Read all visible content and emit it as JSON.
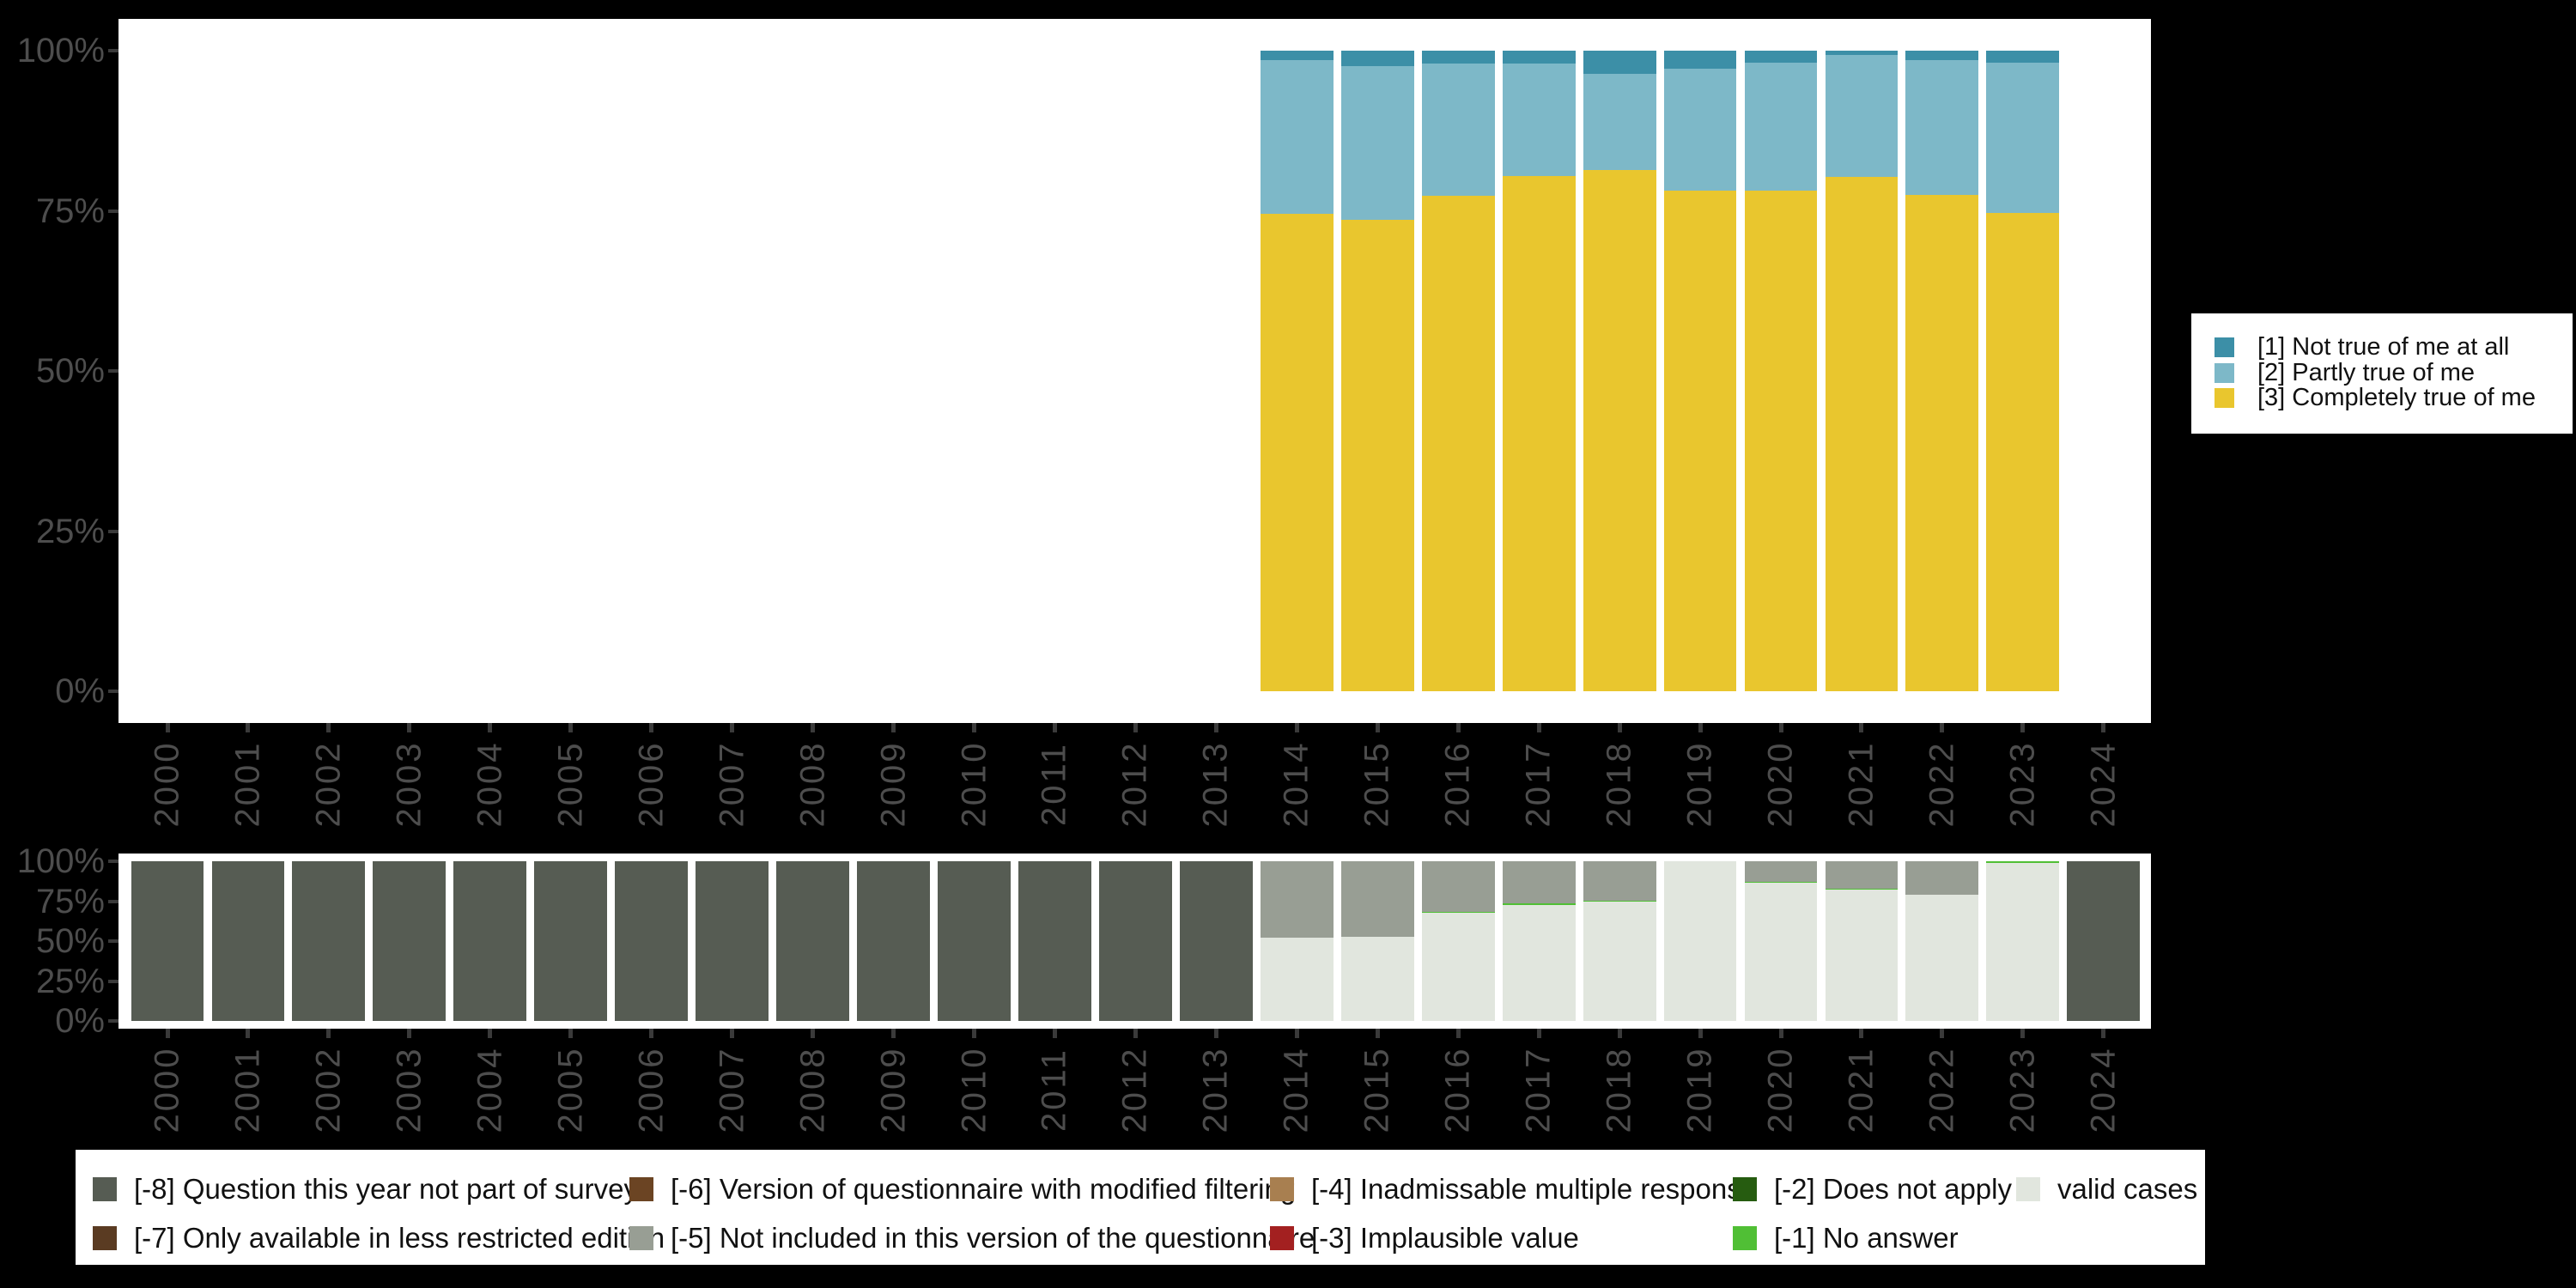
{
  "colors": {
    "background": "#000000",
    "panel": "#ffffff",
    "axis_text": "#4d4d4d",
    "tick": "#3a3a3a",
    "legend_bg": "#ffffff",
    "legend_text": "#111111"
  },
  "chart_data": [
    {
      "id": "response-distribution",
      "type": "bar",
      "stacked": true,
      "title": "",
      "xlabel": "",
      "ylabel": "",
      "ylim": [
        0,
        100
      ],
      "grid": false,
      "y_ticks": [
        {
          "label": "100%",
          "value": 100
        },
        {
          "label": "75%",
          "value": 75
        },
        {
          "label": "50%",
          "value": 50
        },
        {
          "label": "25%",
          "value": 25
        },
        {
          "label": "0%",
          "value": 0
        }
      ],
      "categories": [
        "2000",
        "2001",
        "2002",
        "2003",
        "2004",
        "2005",
        "2006",
        "2007",
        "2008",
        "2009",
        "2010",
        "2011",
        "2012",
        "2013",
        "2014",
        "2015",
        "2016",
        "2017",
        "2018",
        "2019",
        "2020",
        "2021",
        "2022",
        "2023",
        "2024"
      ],
      "series": [
        {
          "name": "[3] Completely true of me",
          "color": "#e9c62e",
          "values": [
            null,
            null,
            null,
            null,
            null,
            null,
            null,
            null,
            null,
            null,
            null,
            null,
            null,
            null,
            74.5,
            73.6,
            77.3,
            80.4,
            81.4,
            78.2,
            78.2,
            80.3,
            77.5,
            74.6,
            null
          ]
        },
        {
          "name": "[2] Partly true of me",
          "color": "#7db8c8",
          "values": [
            null,
            null,
            null,
            null,
            null,
            null,
            null,
            null,
            null,
            null,
            null,
            null,
            null,
            null,
            24.0,
            24.0,
            20.7,
            17.6,
            15.0,
            19.0,
            19.9,
            19.0,
            21.0,
            23.5,
            null
          ]
        },
        {
          "name": "[1] Not true of me at all",
          "color": "#3c8fa7",
          "values": [
            null,
            null,
            null,
            null,
            null,
            null,
            null,
            null,
            null,
            null,
            null,
            null,
            null,
            null,
            1.5,
            2.4,
            2.0,
            2.0,
            3.6,
            2.8,
            1.9,
            0.7,
            1.5,
            1.9,
            null
          ]
        }
      ],
      "legend": {
        "position": "right",
        "items": [
          {
            "label": "[1] Not true of me at all",
            "color": "#3c8fa7"
          },
          {
            "label": "[2] Partly true of me",
            "color": "#7db8c8"
          },
          {
            "label": "[3] Completely true of me",
            "color": "#e9c62e"
          }
        ]
      }
    },
    {
      "id": "missing-values",
      "type": "bar",
      "stacked": true,
      "title": "",
      "xlabel": "",
      "ylabel": "",
      "ylim": [
        0,
        100
      ],
      "grid": false,
      "y_ticks": [
        {
          "label": "100%",
          "value": 100
        },
        {
          "label": "75%",
          "value": 75
        },
        {
          "label": "50%",
          "value": 50
        },
        {
          "label": "25%",
          "value": 25
        },
        {
          "label": "0%",
          "value": 0
        }
      ],
      "categories": [
        "2000",
        "2001",
        "2002",
        "2003",
        "2004",
        "2005",
        "2006",
        "2007",
        "2008",
        "2009",
        "2010",
        "2011",
        "2012",
        "2013",
        "2014",
        "2015",
        "2016",
        "2017",
        "2018",
        "2019",
        "2020",
        "2021",
        "2022",
        "2023",
        "2024"
      ],
      "series": [
        {
          "name": "valid cases",
          "color": "#e1e6de",
          "values": [
            0,
            0,
            0,
            0,
            0,
            0,
            0,
            0,
            0,
            0,
            0,
            0,
            0,
            0,
            52,
            52.5,
            67.5,
            72.5,
            74.5,
            100,
            86.3,
            82.3,
            79,
            99,
            0
          ]
        },
        {
          "name": "[-1] No answer",
          "color": "#50bf35",
          "values": [
            0,
            0,
            0,
            0,
            0,
            0,
            0,
            0,
            0,
            0,
            0,
            0,
            0,
            0,
            0,
            0,
            1,
            1,
            1,
            0,
            0.7,
            0.7,
            0,
            1,
            0
          ]
        },
        {
          "name": "[-5] Not included in this version of the questionnaire",
          "color": "#989e94",
          "values": [
            0,
            0,
            0,
            0,
            0,
            0,
            0,
            0,
            0,
            0,
            0,
            0,
            0,
            0,
            48,
            47.5,
            31.5,
            26.5,
            24.5,
            0,
            13,
            17,
            21,
            0,
            0
          ]
        },
        {
          "name": "[-8] Question this year not part of survey",
          "color": "#565c53",
          "values": [
            100,
            100,
            100,
            100,
            100,
            100,
            100,
            100,
            100,
            100,
            100,
            100,
            100,
            100,
            0,
            0,
            0,
            0,
            0,
            0,
            0,
            0,
            0,
            0,
            100
          ]
        }
      ],
      "legend": {
        "position": "bottom",
        "items": [
          {
            "label": "[-8] Question this year not part of survey",
            "color": "#565c53"
          },
          {
            "label": "[-7] Only available in less restricted edition",
            "color": "#5a3b22"
          },
          {
            "label": "[-6] Version of questionnaire with modified filtering",
            "color": "#6b4423"
          },
          {
            "label": "[-5] Not included in this version of the questionnaire",
            "color": "#989e94"
          },
          {
            "label": "[-4] Inadmissable multiple response",
            "color": "#a87f50"
          },
          {
            "label": "[-3] Implausible value",
            "color": "#a32020"
          },
          {
            "label": "[-2] Does not apply",
            "color": "#265c10"
          },
          {
            "label": "[-1] No answer",
            "color": "#50bf35"
          },
          {
            "label": "valid cases",
            "color": "#e1e6de"
          }
        ]
      }
    }
  ]
}
